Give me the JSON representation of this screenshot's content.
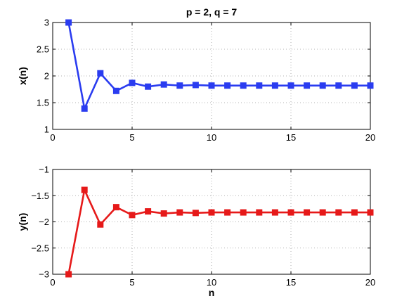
{
  "title": "p = 2, q = 7",
  "chart_data": [
    {
      "type": "line",
      "title": "p = 2, q = 7",
      "xlabel": "",
      "ylabel": "x(n)",
      "xlim": [
        0,
        20
      ],
      "ylim": [
        1,
        3
      ],
      "xticks": [
        0,
        5,
        10,
        15,
        20
      ],
      "yticks": [
        1,
        1.5,
        2,
        2.5,
        3
      ],
      "xtick_labels": [
        "0",
        "5",
        "10",
        "15",
        "20"
      ],
      "ytick_labels": [
        "1",
        "1.5",
        "2",
        "2.5",
        "3"
      ],
      "grid": true,
      "marker": "square",
      "series": [
        {
          "color": "#2a3cf0",
          "x": [
            1,
            2,
            3,
            4,
            5,
            6,
            7,
            8,
            9,
            10,
            11,
            12,
            13,
            14,
            15,
            16,
            17,
            18,
            19,
            20
          ],
          "values": [
            3.0,
            1.39,
            2.05,
            1.72,
            1.87,
            1.8,
            1.84,
            1.82,
            1.83,
            1.82,
            1.82,
            1.82,
            1.82,
            1.82,
            1.82,
            1.82,
            1.82,
            1.82,
            1.82,
            1.82
          ]
        }
      ]
    },
    {
      "type": "line",
      "title": "",
      "xlabel": "n",
      "ylabel": "y(n)",
      "xlim": [
        0,
        20
      ],
      "ylim": [
        -3,
        -1
      ],
      "xticks": [
        0,
        5,
        10,
        15,
        20
      ],
      "yticks": [
        -3,
        -2.5,
        -2,
        -1.5,
        -1
      ],
      "xtick_labels": [
        "0",
        "5",
        "10",
        "15",
        "20"
      ],
      "ytick_labels": [
        "−3",
        "−2.5",
        "−2",
        "−1.5",
        "−1"
      ],
      "grid": true,
      "marker": "square",
      "series": [
        {
          "color": "#e61919",
          "x": [
            1,
            2,
            3,
            4,
            5,
            6,
            7,
            8,
            9,
            10,
            11,
            12,
            13,
            14,
            15,
            16,
            17,
            18,
            19,
            20
          ],
          "values": [
            -3.0,
            -1.39,
            -2.05,
            -1.72,
            -1.87,
            -1.8,
            -1.84,
            -1.82,
            -1.83,
            -1.82,
            -1.82,
            -1.82,
            -1.82,
            -1.82,
            -1.82,
            -1.82,
            -1.82,
            -1.82,
            -1.82,
            -1.82
          ]
        }
      ]
    }
  ]
}
